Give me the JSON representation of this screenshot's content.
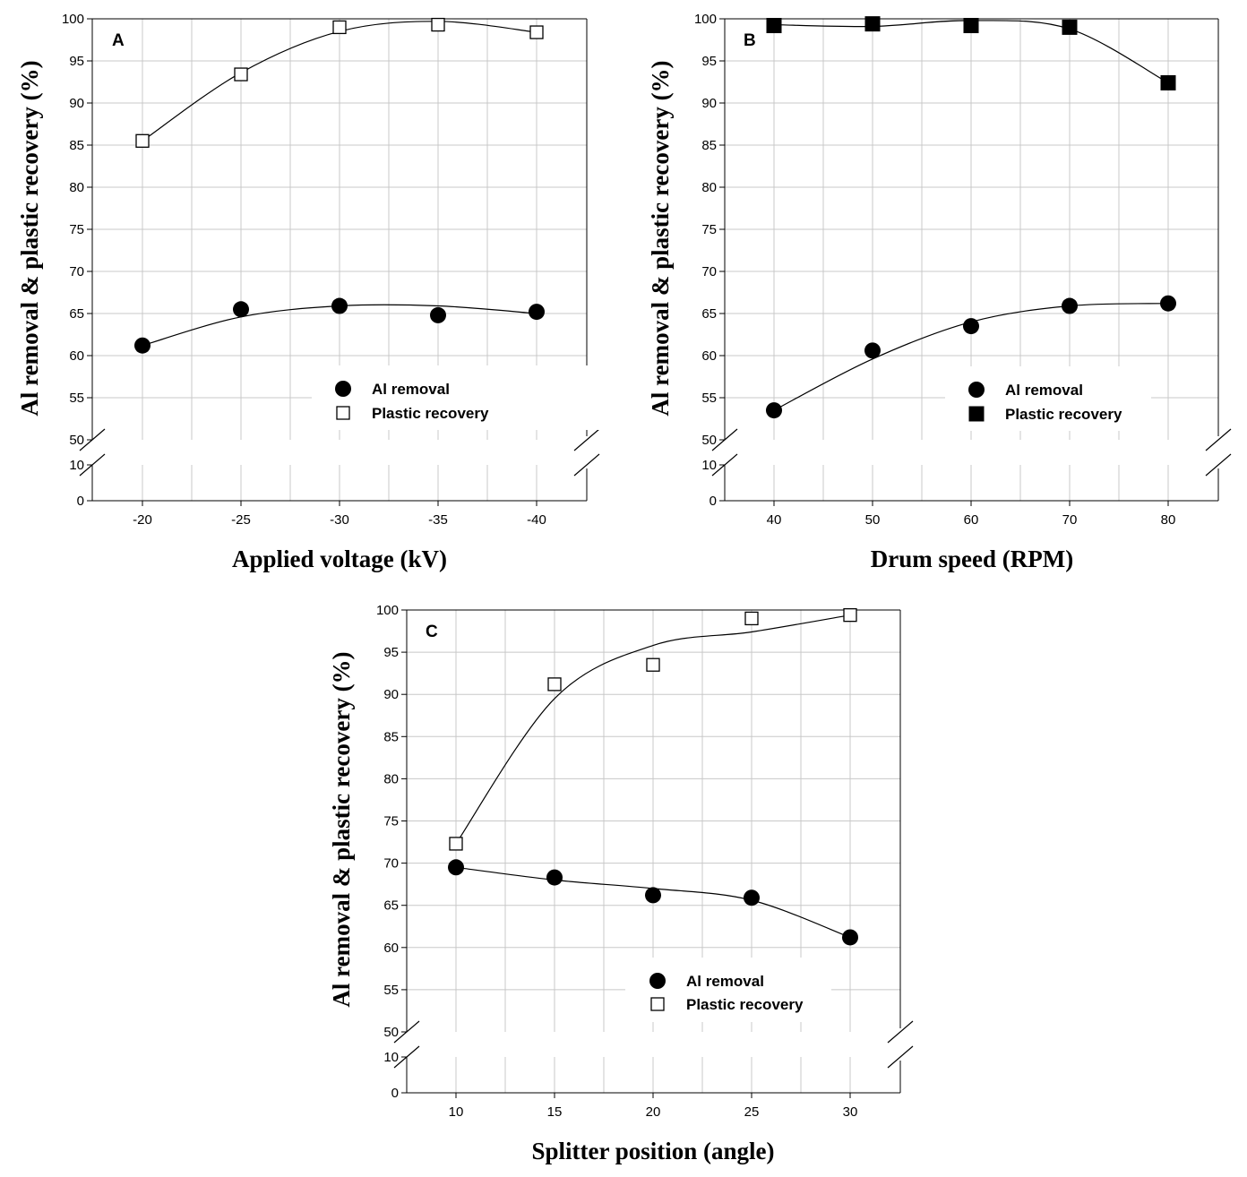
{
  "chart_data": [
    {
      "type": "scatter",
      "panel": "A",
      "xlabel": "Applied voltage (kV)",
      "ylabel": "Al removal & plastic recovery (%)",
      "categories": [
        "-20",
        "-25",
        "-30",
        "-35",
        "-40"
      ],
      "yticks_upper": [
        "50",
        "55",
        "60",
        "65",
        "70",
        "75",
        "80",
        "85",
        "90",
        "95",
        "100"
      ],
      "yticks_lower": [
        "0",
        "10"
      ],
      "ylim": [
        50,
        100
      ],
      "axis_break": [
        10,
        50
      ],
      "grid": true,
      "legend_position": "bottom-right",
      "series": [
        {
          "name": "Al removal",
          "marker": "filled-circle",
          "values": [
            61.2,
            65.5,
            65.9,
            64.8,
            65.2
          ],
          "fit": [
            61.2,
            64.6,
            65.9,
            65.9,
            65.0
          ]
        },
        {
          "name": "Plastic recovery",
          "marker": "open-square",
          "values": [
            85.5,
            93.4,
            99.0,
            99.3,
            98.4
          ],
          "fit": [
            85.5,
            93.6,
            98.5,
            99.7,
            98.4
          ]
        }
      ]
    },
    {
      "type": "scatter",
      "panel": "B",
      "xlabel": "Drum speed (RPM)",
      "ylabel": "Al removal & plastic recovery (%)",
      "categories": [
        "40",
        "50",
        "60",
        "70",
        "80"
      ],
      "yticks_upper": [
        "50",
        "55",
        "60",
        "65",
        "70",
        "75",
        "80",
        "85",
        "90",
        "95",
        "100"
      ],
      "yticks_lower": [
        "0",
        "10"
      ],
      "ylim": [
        50,
        100
      ],
      "axis_break": [
        10,
        50
      ],
      "grid": true,
      "legend_position": "bottom-right",
      "series": [
        {
          "name": "Al removal",
          "marker": "filled-circle",
          "values": [
            53.5,
            60.6,
            63.5,
            65.9,
            66.2
          ],
          "fit": [
            53.5,
            59.6,
            64.0,
            65.9,
            66.2
          ]
        },
        {
          "name": "Plastic recovery",
          "marker": "filled-square",
          "values": [
            99.2,
            99.4,
            99.2,
            99.0,
            92.4
          ],
          "fit": [
            99.3,
            99.1,
            99.8,
            98.8,
            92.4
          ]
        }
      ]
    },
    {
      "type": "scatter",
      "panel": "C",
      "xlabel": "Splitter position (angle)",
      "ylabel": "Al removal & plastic recovery (%)",
      "categories": [
        "10",
        "15",
        "20",
        "25",
        "30"
      ],
      "yticks_upper": [
        "50",
        "55",
        "60",
        "65",
        "70",
        "75",
        "80",
        "85",
        "90",
        "95",
        "100"
      ],
      "yticks_lower": [
        "0",
        "10"
      ],
      "ylim": [
        50,
        100
      ],
      "axis_break": [
        10,
        50
      ],
      "grid": true,
      "legend_position": "bottom-right",
      "series": [
        {
          "name": "Al removal",
          "marker": "filled-circle",
          "values": [
            69.5,
            68.3,
            66.2,
            65.9,
            61.2
          ],
          "fit": [
            69.5,
            68.0,
            67.0,
            65.6,
            61.2
          ]
        },
        {
          "name": "Plastic recovery",
          "marker": "open-square",
          "values": [
            72.3,
            91.2,
            93.5,
            99.0,
            99.4
          ],
          "fit": [
            72.3,
            89.5,
            95.8,
            97.4,
            99.4
          ]
        }
      ]
    }
  ]
}
